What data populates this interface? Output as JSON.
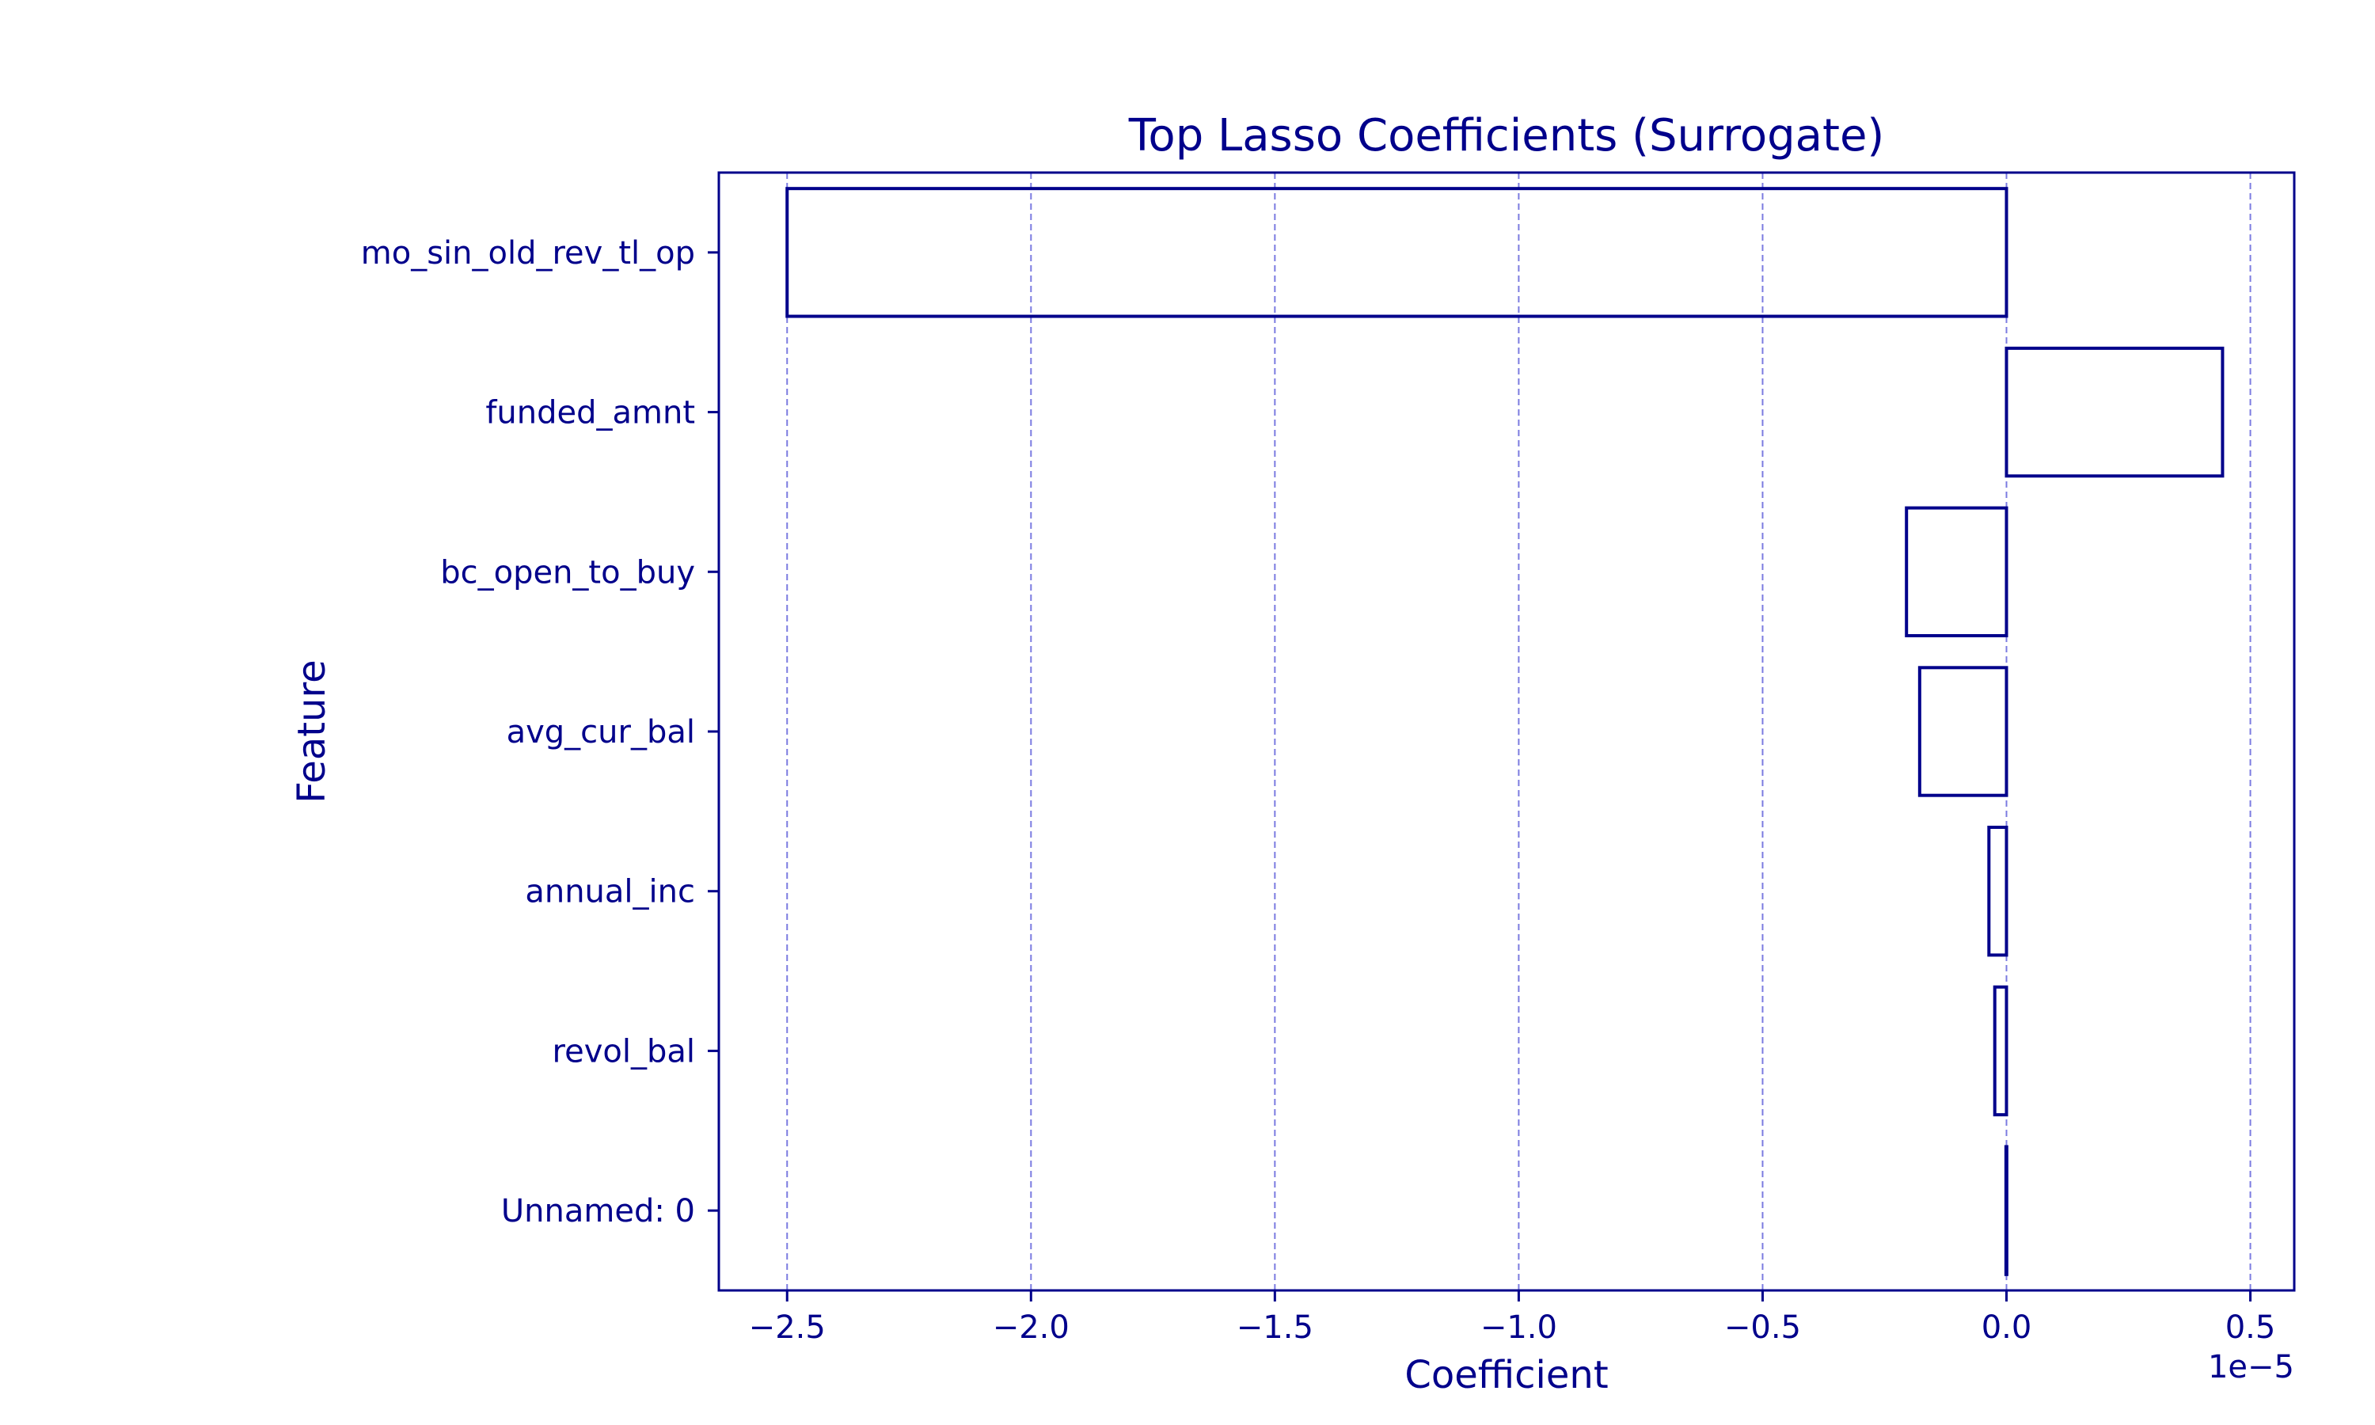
{
  "colors": {
    "primary": "#00008b",
    "grid": "#7b7be0",
    "background": "#ffffff"
  },
  "chart_data": {
    "type": "bar",
    "orientation": "horizontal",
    "title": "Top Lasso Coefficients (Surrogate)",
    "xlabel": "Coefficient",
    "ylabel": "Feature",
    "x_scale_label": "1e−5",
    "x_scale": 1e-05,
    "categories": [
      "mo_sin_old_rev_tl_op",
      "funded_amnt",
      "bc_open_to_buy",
      "avg_cur_bal",
      "annual_inc",
      "revol_bal",
      "Unnamed: 0"
    ],
    "values": [
      -2.5e-05,
      4.43e-06,
      -2.05e-06,
      -1.78e-06,
      -3.6e-07,
      -2.4e-07,
      -1e-08
    ],
    "xlim": [
      -2.64e-05,
      5.9e-06
    ],
    "xticks": [
      -2.5,
      -2.0,
      -1.5,
      -1.0,
      -0.5,
      0.0,
      0.5
    ],
    "xtick_labels": [
      "−2.5",
      "−2.0",
      "−1.5",
      "−1.0",
      "−0.5",
      "0.0",
      "0.5"
    ],
    "grid": "vertical dashed",
    "bar_style": "outline"
  }
}
